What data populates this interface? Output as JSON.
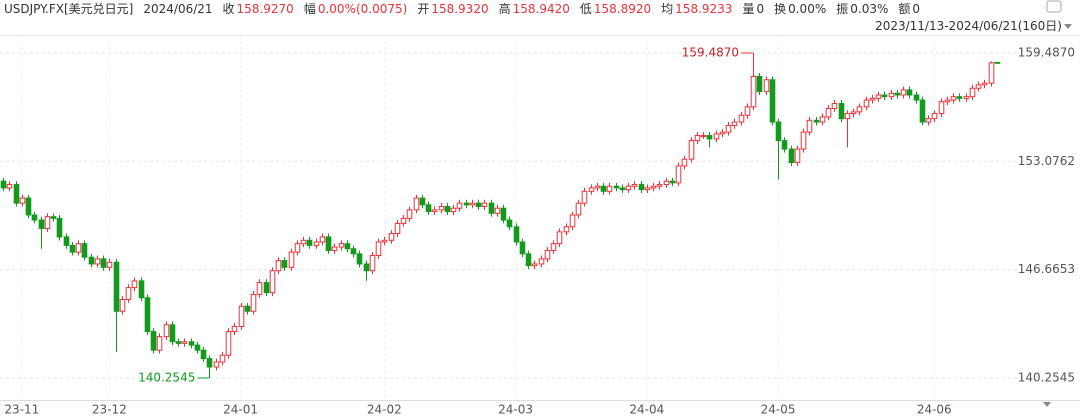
{
  "header": {
    "symbol": "USDJPY.FX[美元兑日元]",
    "date": "2024/06/21",
    "fields": [
      {
        "label": "收",
        "value": "158.9270",
        "color": "#e8333a"
      },
      {
        "label": "幅",
        "value": "0.00%(0.0075)",
        "color": "#e8333a"
      },
      {
        "label": "开",
        "value": "158.9320",
        "color": "#e8333a"
      },
      {
        "label": "高",
        "value": "158.9420",
        "color": "#e8333a"
      },
      {
        "label": "低",
        "value": "158.8920",
        "color": "#e8333a"
      },
      {
        "label": "均",
        "value": "158.9233",
        "color": "#e8333a"
      },
      {
        "label": "量",
        "value": "0",
        "color": "#333333"
      },
      {
        "label": "换",
        "value": "0.00%",
        "color": "#333333"
      },
      {
        "label": "振",
        "value": "0.03%",
        "color": "#333333"
      },
      {
        "label": "额",
        "value": "0",
        "color": "#333333"
      }
    ],
    "range": "2023/11/13-2024/06/21(160日)"
  },
  "chart_data": {
    "type": "candlestick",
    "up_color": "#e8333a",
    "down_color": "#139a1e",
    "high_label": "159.4870",
    "low_label": "140.2545",
    "ylim": [
      138.95,
      160.55
    ],
    "yticks": [
      {
        "value": 140.2545,
        "label": "140.2545"
      },
      {
        "value": 146.6653,
        "label": "146.6653"
      },
      {
        "value": 153.0762,
        "label": "153.0762"
      },
      {
        "value": 159.487,
        "label": "159.4870"
      }
    ],
    "xlim": [
      -0.5,
      160
    ],
    "xticks": [
      {
        "value": 3,
        "label": "23-11"
      },
      {
        "value": 17,
        "label": "23-12"
      },
      {
        "value": 38,
        "label": "24-01"
      },
      {
        "value": 61,
        "label": "24-02"
      },
      {
        "value": 82,
        "label": "24-03"
      },
      {
        "value": 103,
        "label": "24-04"
      },
      {
        "value": 124,
        "label": "24-05"
      },
      {
        "value": 149,
        "label": "24-06"
      }
    ],
    "grid": true,
    "ohlc": [
      [
        151.9,
        152.1,
        151.3,
        151.5
      ],
      [
        151.5,
        151.9,
        151.3,
        151.7
      ],
      [
        151.7,
        151.9,
        150.4,
        150.6
      ],
      [
        150.6,
        151.1,
        150.4,
        150.9
      ],
      [
        150.9,
        151.1,
        149.7,
        149.9
      ],
      [
        149.9,
        150.1,
        149.4,
        149.6
      ],
      [
        149.6,
        149.8,
        147.9,
        149.1
      ],
      [
        149.1,
        150.0,
        148.9,
        149.8
      ],
      [
        149.8,
        150.0,
        149.5,
        149.7
      ],
      [
        149.7,
        149.9,
        148.4,
        148.6
      ],
      [
        148.6,
        148.8,
        147.9,
        148.1
      ],
      [
        148.1,
        148.3,
        147.5,
        147.7
      ],
      [
        147.7,
        148.4,
        147.5,
        148.2
      ],
      [
        148.2,
        148.4,
        147.2,
        147.4
      ],
      [
        147.4,
        147.6,
        146.8,
        147.0
      ],
      [
        147.0,
        147.5,
        146.8,
        147.3
      ],
      [
        147.3,
        147.5,
        146.6,
        146.8
      ],
      [
        146.8,
        147.3,
        146.6,
        147.1
      ],
      [
        147.1,
        147.3,
        141.8,
        144.2
      ],
      [
        144.2,
        145.1,
        144.0,
        144.9
      ],
      [
        144.9,
        145.8,
        144.7,
        145.6
      ],
      [
        145.6,
        146.2,
        145.4,
        146.0
      ],
      [
        146.0,
        146.2,
        144.8,
        145.0
      ],
      [
        145.0,
        145.2,
        142.8,
        143.0
      ],
      [
        143.0,
        143.2,
        141.7,
        141.9
      ],
      [
        141.9,
        142.9,
        141.7,
        142.7
      ],
      [
        142.7,
        143.6,
        142.5,
        143.4
      ],
      [
        143.4,
        143.6,
        142.2,
        142.4
      ],
      [
        142.4,
        142.6,
        142.1,
        142.3
      ],
      [
        142.3,
        142.6,
        142.1,
        142.4
      ],
      [
        142.4,
        142.6,
        142.0,
        142.2
      ],
      [
        142.2,
        142.4,
        141.7,
        141.9
      ],
      [
        141.9,
        142.1,
        141.2,
        141.4
      ],
      [
        141.4,
        141.6,
        140.2545,
        140.9
      ],
      [
        140.9,
        141.4,
        140.7,
        141.2
      ],
      [
        141.2,
        141.8,
        141.0,
        141.6
      ],
      [
        141.6,
        143.2,
        141.4,
        143.0
      ],
      [
        143.0,
        143.5,
        142.8,
        143.3
      ],
      [
        143.3,
        144.7,
        143.1,
        144.5
      ],
      [
        144.5,
        144.7,
        144.0,
        144.2
      ],
      [
        144.2,
        145.4,
        144.0,
        145.2
      ],
      [
        145.2,
        146.1,
        145.0,
        145.9
      ],
      [
        145.9,
        146.1,
        145.1,
        145.3
      ],
      [
        145.3,
        146.8,
        145.1,
        146.6
      ],
      [
        146.6,
        147.4,
        146.4,
        147.2
      ],
      [
        147.2,
        147.4,
        146.6,
        146.8
      ],
      [
        146.8,
        147.9,
        146.6,
        147.7
      ],
      [
        147.7,
        148.4,
        147.5,
        148.2
      ],
      [
        148.2,
        148.6,
        148.0,
        148.4
      ],
      [
        148.4,
        148.6,
        147.9,
        148.1
      ],
      [
        148.1,
        148.5,
        147.9,
        148.3
      ],
      [
        148.3,
        148.8,
        148.1,
        148.6
      ],
      [
        148.6,
        148.8,
        147.6,
        147.8
      ],
      [
        147.8,
        148.2,
        147.6,
        148.0
      ],
      [
        148.0,
        148.4,
        147.8,
        148.2
      ],
      [
        148.2,
        148.4,
        147.7,
        147.9
      ],
      [
        147.9,
        148.1,
        147.4,
        147.6
      ],
      [
        147.6,
        147.8,
        146.8,
        147.0
      ],
      [
        147.0,
        147.2,
        146.0,
        146.6
      ],
      [
        146.6,
        147.7,
        146.4,
        147.5
      ],
      [
        147.5,
        148.5,
        147.3,
        148.3
      ],
      [
        148.3,
        148.6,
        148.1,
        148.4
      ],
      [
        148.4,
        149.0,
        148.2,
        148.8
      ],
      [
        148.8,
        149.6,
        148.6,
        149.4
      ],
      [
        149.4,
        149.9,
        149.2,
        149.7
      ],
      [
        149.7,
        150.4,
        149.5,
        150.2
      ],
      [
        150.2,
        151.1,
        150.0,
        150.9
      ],
      [
        150.9,
        151.1,
        150.3,
        150.5
      ],
      [
        150.5,
        150.7,
        149.9,
        150.1
      ],
      [
        150.1,
        150.4,
        149.9,
        150.2
      ],
      [
        150.2,
        150.6,
        150.0,
        150.4
      ],
      [
        150.4,
        150.6,
        149.9,
        150.1
      ],
      [
        150.1,
        150.5,
        149.9,
        150.3
      ],
      [
        150.3,
        150.8,
        150.1,
        150.6
      ],
      [
        150.6,
        150.8,
        150.3,
        150.5
      ],
      [
        150.5,
        150.8,
        150.3,
        150.6
      ],
      [
        150.6,
        150.8,
        150.2,
        150.4
      ],
      [
        150.4,
        150.8,
        150.2,
        150.6
      ],
      [
        150.6,
        150.8,
        149.8,
        150.0
      ],
      [
        150.0,
        150.5,
        149.8,
        150.3
      ],
      [
        150.3,
        150.5,
        149.4,
        149.6
      ],
      [
        149.6,
        149.8,
        149.0,
        149.2
      ],
      [
        149.2,
        149.4,
        148.1,
        148.3
      ],
      [
        148.3,
        148.5,
        147.4,
        147.6
      ],
      [
        147.6,
        147.8,
        146.7,
        146.9
      ],
      [
        146.9,
        147.2,
        146.7,
        147.0
      ],
      [
        147.0,
        147.5,
        146.8,
        147.3
      ],
      [
        147.3,
        148.0,
        147.1,
        147.8
      ],
      [
        147.8,
        148.4,
        147.6,
        148.2
      ],
      [
        148.2,
        149.1,
        148.0,
        148.9
      ],
      [
        148.9,
        149.4,
        148.7,
        149.2
      ],
      [
        149.2,
        150.1,
        149.0,
        149.9
      ],
      [
        149.9,
        150.8,
        149.7,
        150.6
      ],
      [
        150.6,
        151.5,
        150.4,
        151.3
      ],
      [
        151.3,
        151.7,
        151.1,
        151.5
      ],
      [
        151.5,
        151.8,
        151.3,
        151.6
      ],
      [
        151.6,
        151.8,
        151.1,
        151.3
      ],
      [
        151.3,
        151.8,
        151.1,
        151.6
      ],
      [
        151.6,
        151.8,
        151.3,
        151.5
      ],
      [
        151.5,
        151.7,
        151.2,
        151.4
      ],
      [
        151.4,
        151.8,
        151.2,
        151.6
      ],
      [
        151.6,
        151.9,
        151.4,
        151.7
      ],
      [
        151.7,
        151.9,
        151.2,
        151.4
      ],
      [
        151.4,
        151.7,
        151.2,
        151.5
      ],
      [
        151.5,
        151.8,
        151.3,
        151.6
      ],
      [
        151.6,
        151.9,
        151.4,
        151.7
      ],
      [
        151.7,
        152.1,
        151.5,
        151.9
      ],
      [
        151.9,
        152.1,
        151.6,
        151.8
      ],
      [
        151.8,
        153.0,
        151.6,
        152.8
      ],
      [
        152.8,
        153.4,
        152.6,
        153.2
      ],
      [
        153.2,
        154.5,
        153.0,
        154.3
      ],
      [
        154.3,
        154.8,
        154.1,
        154.6
      ],
      [
        154.6,
        154.8,
        154.4,
        154.6
      ],
      [
        154.6,
        154.8,
        153.9,
        154.4
      ],
      [
        154.4,
        154.9,
        154.2,
        154.7
      ],
      [
        154.7,
        155.0,
        154.5,
        154.8
      ],
      [
        154.8,
        155.4,
        154.6,
        155.2
      ],
      [
        155.2,
        155.6,
        155.0,
        155.4
      ],
      [
        155.4,
        156.0,
        155.2,
        155.8
      ],
      [
        155.8,
        156.5,
        155.6,
        156.3
      ],
      [
        156.3,
        159.487,
        156.1,
        158.1
      ],
      [
        158.1,
        158.3,
        157.0,
        157.2
      ],
      [
        157.2,
        158.1,
        157.0,
        157.9
      ],
      [
        157.9,
        158.1,
        155.2,
        155.4
      ],
      [
        155.4,
        155.6,
        152.0,
        154.3
      ],
      [
        154.3,
        154.5,
        153.6,
        153.8
      ],
      [
        153.8,
        154.0,
        152.8,
        153.0
      ],
      [
        153.0,
        154.0,
        152.8,
        153.8
      ],
      [
        153.8,
        155.0,
        153.6,
        154.8
      ],
      [
        154.8,
        155.7,
        154.6,
        155.5
      ],
      [
        155.5,
        155.7,
        155.2,
        155.4
      ],
      [
        155.4,
        155.9,
        155.2,
        155.7
      ],
      [
        155.7,
        156.4,
        155.5,
        156.2
      ],
      [
        156.2,
        156.7,
        156.0,
        156.5
      ],
      [
        156.5,
        156.7,
        155.4,
        155.6
      ],
      [
        155.6,
        156.1,
        153.9,
        155.9
      ],
      [
        155.9,
        156.2,
        155.7,
        156.0
      ],
      [
        156.0,
        156.5,
        155.8,
        156.3
      ],
      [
        156.3,
        156.9,
        156.1,
        156.7
      ],
      [
        156.7,
        157.0,
        156.5,
        156.8
      ],
      [
        156.8,
        157.2,
        156.6,
        157.0
      ],
      [
        157.0,
        157.2,
        156.7,
        156.9
      ],
      [
        156.9,
        157.3,
        156.7,
        157.1
      ],
      [
        157.1,
        157.3,
        156.8,
        157.0
      ],
      [
        157.0,
        157.5,
        156.8,
        157.3
      ],
      [
        157.3,
        157.5,
        156.8,
        157.0
      ],
      [
        157.0,
        157.2,
        156.5,
        156.7
      ],
      [
        156.7,
        156.9,
        155.2,
        155.4
      ],
      [
        155.4,
        155.8,
        155.2,
        155.6
      ],
      [
        155.6,
        156.1,
        155.4,
        155.9
      ],
      [
        155.9,
        156.8,
        155.7,
        156.6
      ],
      [
        156.6,
        156.9,
        156.4,
        156.7
      ],
      [
        156.7,
        157.1,
        156.5,
        156.9
      ],
      [
        156.9,
        157.1,
        156.6,
        156.8
      ],
      [
        156.8,
        157.1,
        156.6,
        156.9
      ],
      [
        156.9,
        157.6,
        156.7,
        157.4
      ],
      [
        157.4,
        157.8,
        157.2,
        157.6
      ],
      [
        157.6,
        157.9,
        157.4,
        157.7
      ],
      [
        157.7,
        159.0,
        157.5,
        158.9
      ],
      [
        158.932,
        158.942,
        158.892,
        158.927
      ]
    ]
  }
}
